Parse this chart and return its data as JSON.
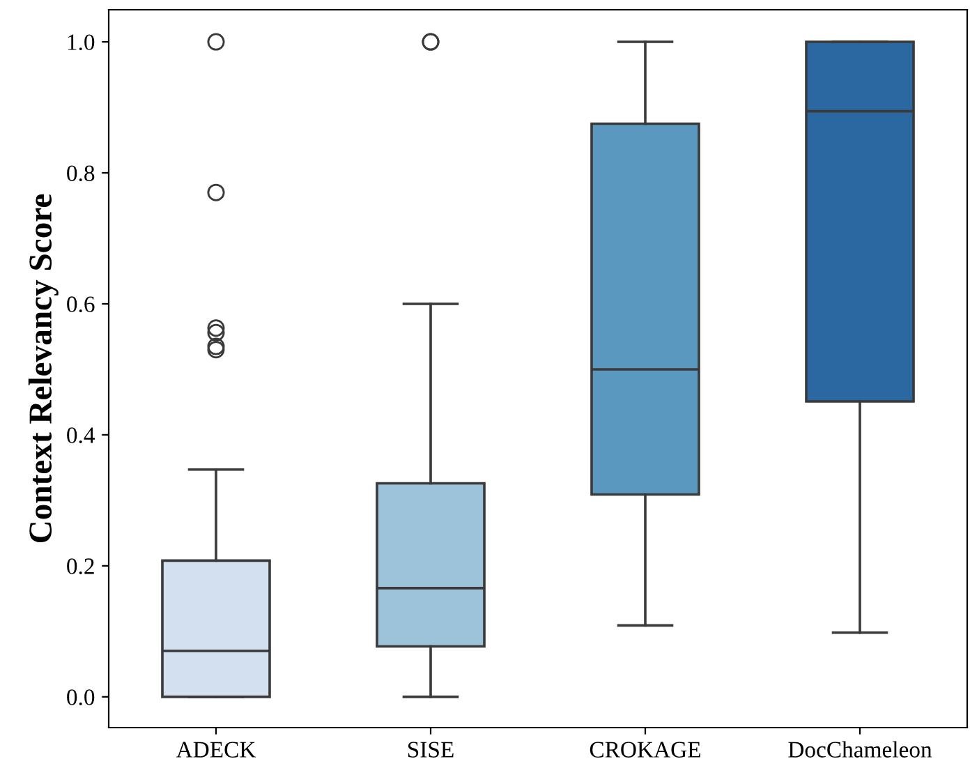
{
  "chart_data": {
    "type": "box",
    "ylabel": "Context Relevancy Score",
    "categories": [
      "ADECK",
      "SISE",
      "CROKAGE",
      "DocChameleon"
    ],
    "colors": [
      "#d3e0ef",
      "#9cc3d9",
      "#5b98c0",
      "#2b67a0"
    ],
    "boxes": [
      {
        "low": 0.0,
        "q1": 0.0,
        "median": 0.07,
        "q3": 0.208,
        "high": 0.347,
        "outliers": [
          1.0,
          0.77,
          0.563,
          0.556,
          0.535,
          0.53
        ]
      },
      {
        "low": 0.0,
        "q1": 0.077,
        "median": 0.166,
        "q3": 0.326,
        "high": 0.6,
        "outliers": [
          1.0,
          1.0
        ]
      },
      {
        "low": 0.109,
        "q1": 0.309,
        "median": 0.5,
        "q3": 0.875,
        "high": 1.0
      },
      {
        "low": 0.098,
        "q1": 0.451,
        "median": 0.894,
        "q3": 1.0,
        "high": 1.0
      }
    ],
    "ylim": [
      -0.047,
      1.049
    ],
    "yticks": [
      {
        "value": 0.0,
        "label": "0.0"
      },
      {
        "value": 0.2,
        "label": "0.2"
      },
      {
        "value": 0.4,
        "label": "0.4"
      },
      {
        "value": 0.6,
        "label": "0.6"
      },
      {
        "value": 0.8,
        "label": "0.8"
      },
      {
        "value": 1.0,
        "label": "1.0"
      }
    ],
    "grid": false,
    "legend": false
  }
}
